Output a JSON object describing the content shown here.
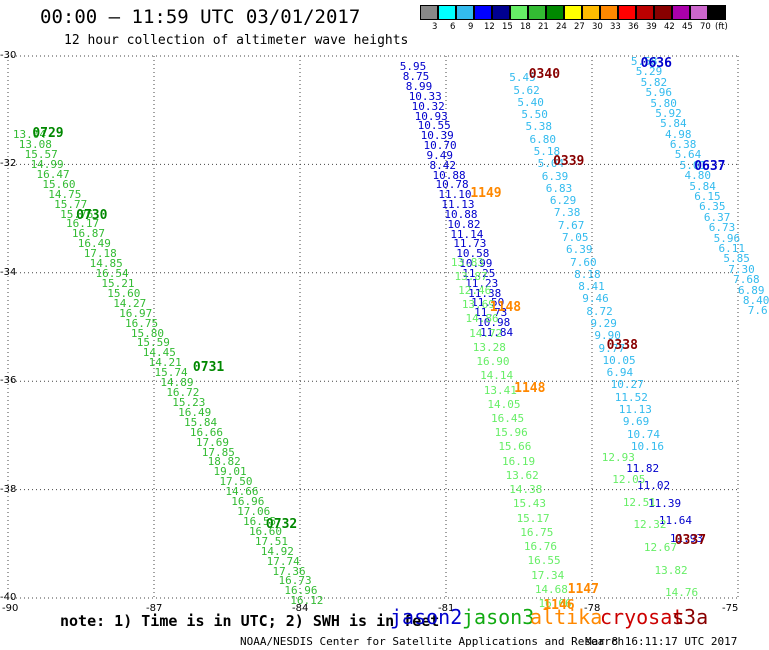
{
  "title": "00:00 — 11:59 UTC 03/01/2017",
  "subtitle": "12 hour collection of altimeter wave heights",
  "colorbar": {
    "labels": [
      "3",
      "6",
      "9",
      "12",
      "15",
      "18",
      "21",
      "24",
      "27",
      "30",
      "33",
      "36",
      "39",
      "42",
      "45",
      "70",
      "(ft)"
    ],
    "colors": [
      "#888888",
      "#00ffff",
      "#33bbee",
      "#0000ff",
      "#000090",
      "#66ee66",
      "#33bb33",
      "#008800",
      "#ffff00",
      "#ffbb00",
      "#ff8800",
      "#ff0000",
      "#bb0000",
      "#880000",
      "#aa00aa",
      "#cc66cc",
      "#000000"
    ]
  },
  "axes": {
    "lat_labels": [
      "-30",
      "-32",
      "-34",
      "-36",
      "-38",
      "-40"
    ],
    "lon_labels": [
      "-90",
      "-87",
      "-84",
      "-81",
      "-78",
      "-75"
    ]
  },
  "note": "note: 1) Time is in UTC; 2) SWH is in feet",
  "satellites": [
    {
      "name": "jason2",
      "color": "#0000cc"
    },
    {
      "name": "jason3",
      "color": "#11aa11"
    },
    {
      "name": "altika",
      "color": "#ff8800"
    },
    {
      "name": "cryosat",
      "color": "#cc0000"
    },
    {
      "name": "s3a",
      "color": "#880000"
    }
  ],
  "footer_left": "NOAA/NESDIS Center for Satellite Applications and Research",
  "footer_right": "Mar  8 16:11:17 UTC 2017",
  "time_labels": [
    {
      "text": "0729",
      "color": "#008800",
      "lat": -31.3,
      "lon": -89.5
    },
    {
      "text": "0730",
      "color": "#008800",
      "lat": -32.8,
      "lon": -88.6
    },
    {
      "text": "0731",
      "color": "#008800",
      "lat": -35.6,
      "lon": -86.2
    },
    {
      "text": "0732",
      "color": "#008800",
      "lat": -38.5,
      "lon": -84.7
    },
    {
      "text": "0340",
      "color": "#880000",
      "lat": -30.2,
      "lon": -79.3
    },
    {
      "text": "0339",
      "color": "#880000",
      "lat": -31.8,
      "lon": -78.8
    },
    {
      "text": "0338",
      "color": "#880000",
      "lat": -35.2,
      "lon": -77.7
    },
    {
      "text": "0337",
      "color": "#880000",
      "lat": -38.8,
      "lon": -76.3
    },
    {
      "text": "0636",
      "color": "#0000cc",
      "lat": -30.0,
      "lon": -77.0
    },
    {
      "text": "0637",
      "color": "#0000cc",
      "lat": -31.9,
      "lon": -75.9
    },
    {
      "text": "1149",
      "color": "#ff8800",
      "lat": -32.4,
      "lon": -80.5
    },
    {
      "text": "1148",
      "color": "#ff8800",
      "lat": -34.5,
      "lon": -80.1
    },
    {
      "text": "1148",
      "color": "#ff8800",
      "lat": -36.0,
      "lon": -79.6
    },
    {
      "text": "1147",
      "color": "#ff8800",
      "lat": -39.7,
      "lon": -78.5
    },
    {
      "text": "1146",
      "color": "#ff8800",
      "lat": -40.0,
      "lon": -79.0
    }
  ],
  "tracks": [
    {
      "color": "#33bb33",
      "values": [
        "13.04",
        "13.08",
        "15.57",
        "14.99",
        "16.47",
        "15.60",
        "14.75",
        "15.77",
        "15.76",
        "16.17",
        "16.87",
        "16.49",
        "17.18",
        "14.85",
        "16.54",
        "15.21",
        "15.60",
        "14.27",
        "16.97",
        "16.75",
        "15.80",
        "15.59",
        "14.45",
        "14.21",
        "15.74",
        "14.89",
        "16.72",
        "15.23",
        "16.49",
        "15.84",
        "16.66",
        "17.69",
        "17.85",
        "18.82",
        "19.01",
        "17.50",
        "14.66",
        "16.96",
        "17.06",
        "16.55",
        "16.60",
        "17.51",
        "14.92",
        "17.74",
        "17.36",
        "16.73",
        "16.96",
        "16.12"
      ],
      "start": [
        -89.9,
        -31.35
      ],
      "end": [
        -84.2,
        -39.95
      ]
    },
    {
      "color": "#0000cc",
      "values": [
        "5.95",
        "8.75",
        "8.99",
        "10.33",
        "10.32",
        "10.93",
        "10.55",
        "10.39",
        "10.70",
        "9.49",
        "8.42",
        "10.88",
        "10.78",
        "11.10",
        "11.13",
        "10.88",
        "10.82",
        "11.14",
        "11.73",
        "10.58",
        "10.99",
        "11.25",
        "11.23",
        "11.38",
        "11.50",
        "11.73",
        "10.98",
        "11.84"
      ],
      "start": [
        -81.95,
        -30.1
      ],
      "end": [
        -80.3,
        -35.0
      ]
    },
    {
      "color": "#33bbee",
      "values": [
        "5.45",
        "5.62",
        "5.40",
        "5.50",
        "5.38",
        "6.80",
        "5.18",
        "5.04",
        "6.39",
        "6.83",
        "6.29",
        "7.38",
        "7.67",
        "7.05",
        "6.39",
        "7.60",
        "8.18",
        "8.41",
        "9.46",
        "8.72",
        "9.29",
        "9.90",
        "9.77",
        "10.05",
        "6.94",
        "10.27",
        "11.52",
        "11.13",
        "9.69",
        "10.74",
        "10.16"
      ],
      "start": [
        -79.7,
        -30.3
      ],
      "end": [
        -77.2,
        -37.1
      ]
    },
    {
      "color": "#66ee66",
      "values": [
        "13.83",
        "13.87",
        "12.46",
        "13.69",
        "14.86",
        "14.72",
        "13.28",
        "16.90",
        "14.14",
        "13.41",
        "14.05",
        "16.45",
        "15.96",
        "15.66",
        "16.19",
        "13.62",
        "14.38",
        "15.43",
        "15.17",
        "16.75",
        "16.76",
        "16.55",
        "17.34",
        "14.68",
        "16.66"
      ],
      "start": [
        -80.9,
        -33.7
      ],
      "end": [
        -79.1,
        -40.0
      ]
    },
    {
      "color": "#0000cc",
      "values": [
        "11.82",
        "11.02",
        "11.39",
        "11.64",
        "11.93"
      ],
      "start": [
        -77.3,
        -37.5
      ],
      "end": [
        -76.4,
        -38.8
      ]
    },
    {
      "color": "#66ee66",
      "values": [
        "12.93",
        "12.05",
        "12.51",
        "12.32",
        "12.67",
        "13.82",
        "14.76"
      ],
      "start": [
        -77.8,
        -37.3
      ],
      "end": [
        -76.5,
        -39.8
      ]
    },
    {
      "color": "#33bbee",
      "values": [
        "5.58",
        "5.29",
        "5.82",
        "5.96",
        "5.80",
        "5.92",
        "5.84",
        "4.98",
        "6.38",
        "5.64",
        "5.01",
        "4.80",
        "5.84",
        "6.15",
        "6.35",
        "6.37",
        "6.73",
        "5.96",
        "6.11",
        "5.85",
        "7.30",
        "7.68",
        "6.89",
        "8.40",
        "7.6"
      ],
      "start": [
        -77.2,
        -30.0
      ],
      "end": [
        -74.8,
        -34.6
      ]
    }
  ]
}
